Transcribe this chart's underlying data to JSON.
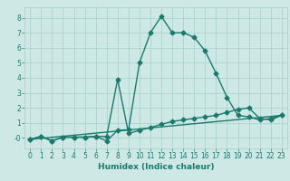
{
  "title": "",
  "xlabel": "Humidex (Indice chaleur)",
  "background_color": "#cde8e5",
  "grid_color": "#add4d0",
  "line_color": "#1a7a6e",
  "xlim": [
    -0.5,
    23.5
  ],
  "ylim": [
    -0.7,
    8.7
  ],
  "xticks": [
    0,
    1,
    2,
    3,
    4,
    5,
    6,
    7,
    8,
    9,
    10,
    11,
    12,
    13,
    14,
    15,
    16,
    17,
    18,
    19,
    20,
    21,
    22,
    23
  ],
  "yticks": [
    0,
    1,
    2,
    3,
    4,
    5,
    6,
    7,
    8
  ],
  "series1_x": [
    0,
    1,
    2,
    3,
    4,
    5,
    6,
    7,
    8,
    9,
    10,
    11,
    12,
    13,
    14,
    15,
    16,
    17,
    18,
    19,
    20,
    21,
    22,
    23
  ],
  "series1_y": [
    -0.1,
    0.1,
    -0.2,
    0.05,
    0.05,
    0.05,
    0.1,
    -0.2,
    0.5,
    0.55,
    5.0,
    7.0,
    8.1,
    7.0,
    7.0,
    6.7,
    5.8,
    4.3,
    2.7,
    1.5,
    1.4,
    1.2,
    1.3,
    1.5
  ],
  "series2_x": [
    0,
    1,
    2,
    3,
    4,
    5,
    6,
    7,
    8,
    9,
    10,
    11,
    12,
    13,
    14,
    15,
    16,
    17,
    18,
    19,
    20,
    21,
    22,
    23
  ],
  "series2_y": [
    -0.1,
    0.1,
    -0.2,
    0.05,
    0.05,
    0.05,
    0.1,
    0.1,
    3.9,
    0.3,
    0.5,
    0.7,
    0.9,
    1.1,
    1.2,
    1.3,
    1.4,
    1.5,
    1.7,
    1.9,
    2.0,
    1.3,
    1.2,
    1.5
  ],
  "series3_x": [
    0,
    23
  ],
  "series3_y": [
    -0.1,
    1.5
  ],
  "marker_size": 2.5,
  "line_width": 1.0
}
